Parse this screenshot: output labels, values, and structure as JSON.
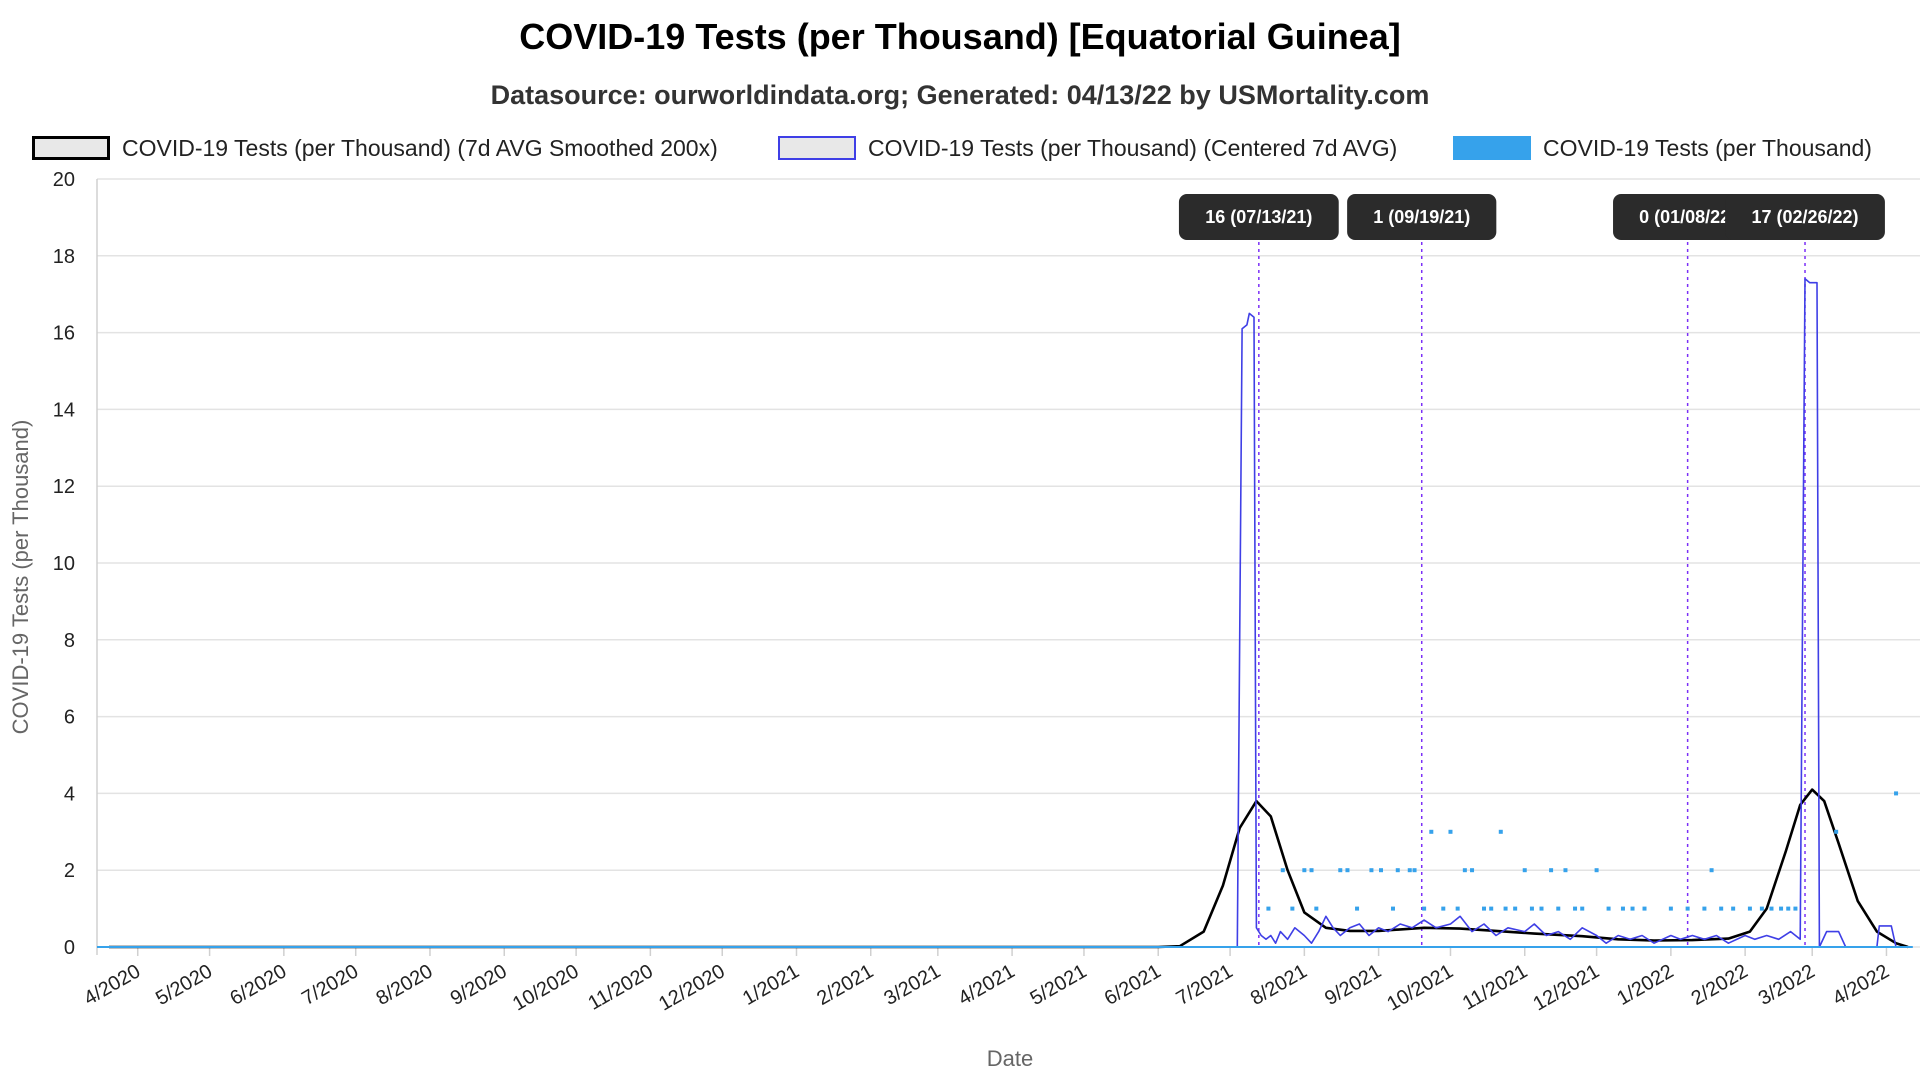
{
  "chart_data": {
    "type": "line",
    "title": "COVID-19 Tests (per Thousand) [Equatorial Guinea]",
    "subtitle": "Datasource: ourworldindata.org; Generated: 04/13/22 by USMortality.com",
    "xlabel": "Date",
    "ylabel": "COVID-19 Tests (per Thousand)",
    "ylim": [
      0,
      20
    ],
    "yticks": [
      0,
      2,
      4,
      6,
      8,
      10,
      12,
      14,
      16,
      18,
      20
    ],
    "xlim": [
      "2020-03-15",
      "2022-04-15"
    ],
    "xticks": [
      {
        "date": "2020-04-01",
        "label": "4/2020"
      },
      {
        "date": "2020-05-01",
        "label": "5/2020"
      },
      {
        "date": "2020-06-01",
        "label": "6/2020"
      },
      {
        "date": "2020-07-01",
        "label": "7/2020"
      },
      {
        "date": "2020-08-01",
        "label": "8/2020"
      },
      {
        "date": "2020-09-01",
        "label": "9/2020"
      },
      {
        "date": "2020-10-01",
        "label": "10/2020"
      },
      {
        "date": "2020-11-01",
        "label": "11/2020"
      },
      {
        "date": "2020-12-01",
        "label": "12/2020"
      },
      {
        "date": "2021-01-01",
        "label": "1/2021"
      },
      {
        "date": "2021-02-01",
        "label": "2/2021"
      },
      {
        "date": "2021-03-01",
        "label": "3/2021"
      },
      {
        "date": "2021-04-01",
        "label": "4/2021"
      },
      {
        "date": "2021-05-01",
        "label": "5/2021"
      },
      {
        "date": "2021-06-01",
        "label": "6/2021"
      },
      {
        "date": "2021-07-01",
        "label": "7/2021"
      },
      {
        "date": "2021-08-01",
        "label": "8/2021"
      },
      {
        "date": "2021-09-01",
        "label": "9/2021"
      },
      {
        "date": "2021-10-01",
        "label": "10/2021"
      },
      {
        "date": "2021-11-01",
        "label": "11/2021"
      },
      {
        "date": "2021-12-01",
        "label": "12/2021"
      },
      {
        "date": "2022-01-01",
        "label": "1/2022"
      },
      {
        "date": "2022-02-01",
        "label": "2/2022"
      },
      {
        "date": "2022-03-01",
        "label": "3/2022"
      },
      {
        "date": "2022-04-01",
        "label": "4/2022"
      }
    ],
    "grid": true,
    "legend_position": "top",
    "series": [
      {
        "name": "COVID-19 Tests (per Thousand) (7d AVG Smoothed 200x)",
        "style": "line",
        "color": "#000000",
        "points": [
          [
            "2020-03-20",
            0
          ],
          [
            "2021-06-01",
            0
          ],
          [
            "2021-06-10",
            0.02
          ],
          [
            "2021-06-20",
            0.4
          ],
          [
            "2021-06-28",
            1.6
          ],
          [
            "2021-07-05",
            3.1
          ],
          [
            "2021-07-12",
            3.8
          ],
          [
            "2021-07-18",
            3.4
          ],
          [
            "2021-07-25",
            2.0
          ],
          [
            "2021-08-01",
            0.9
          ],
          [
            "2021-08-10",
            0.5
          ],
          [
            "2021-08-20",
            0.42
          ],
          [
            "2021-09-01",
            0.42
          ],
          [
            "2021-09-20",
            0.5
          ],
          [
            "2021-10-05",
            0.48
          ],
          [
            "2021-10-20",
            0.42
          ],
          [
            "2021-11-05",
            0.35
          ],
          [
            "2021-11-25",
            0.28
          ],
          [
            "2021-12-10",
            0.2
          ],
          [
            "2021-12-25",
            0.17
          ],
          [
            "2022-01-10",
            0.18
          ],
          [
            "2022-01-25",
            0.22
          ],
          [
            "2022-02-03",
            0.4
          ],
          [
            "2022-02-10",
            1.0
          ],
          [
            "2022-02-18",
            2.5
          ],
          [
            "2022-02-24",
            3.7
          ],
          [
            "2022-03-01",
            4.1
          ],
          [
            "2022-03-06",
            3.8
          ],
          [
            "2022-03-12",
            2.7
          ],
          [
            "2022-03-20",
            1.2
          ],
          [
            "2022-03-28",
            0.4
          ],
          [
            "2022-04-05",
            0.1
          ],
          [
            "2022-04-10",
            0.0
          ]
        ]
      },
      {
        "name": "COVID-19 Tests (per Thousand) (Centered 7d AVG)",
        "style": "line",
        "color": "#3f3fe6",
        "points": [
          [
            "2020-03-20",
            0
          ],
          [
            "2021-07-04",
            0
          ],
          [
            "2021-07-06",
            16.1
          ],
          [
            "2021-07-08",
            16.2
          ],
          [
            "2021-07-09",
            16.5
          ],
          [
            "2021-07-11",
            16.4
          ],
          [
            "2021-07-12",
            0.5
          ],
          [
            "2021-07-14",
            0.3
          ],
          [
            "2021-07-16",
            0.2
          ],
          [
            "2021-07-18",
            0.3
          ],
          [
            "2021-07-20",
            0.1
          ],
          [
            "2021-07-22",
            0.4
          ],
          [
            "2021-07-25",
            0.2
          ],
          [
            "2021-07-28",
            0.5
          ],
          [
            "2021-08-01",
            0.3
          ],
          [
            "2021-08-04",
            0.1
          ],
          [
            "2021-08-07",
            0.4
          ],
          [
            "2021-08-10",
            0.8
          ],
          [
            "2021-08-13",
            0.5
          ],
          [
            "2021-08-16",
            0.3
          ],
          [
            "2021-08-20",
            0.5
          ],
          [
            "2021-08-24",
            0.6
          ],
          [
            "2021-08-28",
            0.3
          ],
          [
            "2021-09-01",
            0.5
          ],
          [
            "2021-09-05",
            0.4
          ],
          [
            "2021-09-10",
            0.6
          ],
          [
            "2021-09-15",
            0.5
          ],
          [
            "2021-09-20",
            0.7
          ],
          [
            "2021-09-25",
            0.5
          ],
          [
            "2021-10-01",
            0.6
          ],
          [
            "2021-10-05",
            0.8
          ],
          [
            "2021-10-10",
            0.4
          ],
          [
            "2021-10-15",
            0.6
          ],
          [
            "2021-10-20",
            0.3
          ],
          [
            "2021-10-25",
            0.5
          ],
          [
            "2021-11-01",
            0.4
          ],
          [
            "2021-11-05",
            0.6
          ],
          [
            "2021-11-10",
            0.3
          ],
          [
            "2021-11-15",
            0.4
          ],
          [
            "2021-11-20",
            0.2
          ],
          [
            "2021-11-25",
            0.5
          ],
          [
            "2021-12-01",
            0.3
          ],
          [
            "2021-12-05",
            0.1
          ],
          [
            "2021-12-10",
            0.3
          ],
          [
            "2021-12-15",
            0.2
          ],
          [
            "2021-12-20",
            0.3
          ],
          [
            "2021-12-25",
            0.1
          ],
          [
            "2022-01-01",
            0.3
          ],
          [
            "2022-01-05",
            0.2
          ],
          [
            "2022-01-10",
            0.3
          ],
          [
            "2022-01-15",
            0.2
          ],
          [
            "2022-01-20",
            0.3
          ],
          [
            "2022-01-25",
            0.1
          ],
          [
            "2022-02-01",
            0.3
          ],
          [
            "2022-02-05",
            0.2
          ],
          [
            "2022-02-10",
            0.3
          ],
          [
            "2022-02-15",
            0.2
          ],
          [
            "2022-02-20",
            0.4
          ],
          [
            "2022-02-24",
            0.2
          ],
          [
            "2022-02-26",
            17.4
          ],
          [
            "2022-02-28",
            17.3
          ],
          [
            "2022-03-03",
            17.3
          ],
          [
            "2022-03-04",
            0.0
          ],
          [
            "2022-03-07",
            0.4
          ],
          [
            "2022-03-12",
            0.4
          ],
          [
            "2022-03-15",
            0.0
          ],
          [
            "2022-03-28",
            0.0
          ],
          [
            "2022-03-29",
            0.55
          ],
          [
            "2022-04-03",
            0.55
          ],
          [
            "2022-04-05",
            0.0
          ],
          [
            "2022-04-10",
            0.0
          ]
        ]
      },
      {
        "name": "COVID-19 Tests (per Thousand)",
        "style": "points",
        "color": "#36a2eb",
        "points": [
          [
            "2021-07-17",
            1
          ],
          [
            "2021-07-23",
            2
          ],
          [
            "2021-07-27",
            1
          ],
          [
            "2021-08-01",
            2
          ],
          [
            "2021-08-04",
            2
          ],
          [
            "2021-08-06",
            1
          ],
          [
            "2021-08-16",
            2
          ],
          [
            "2021-08-19",
            2
          ],
          [
            "2021-08-23",
            1
          ],
          [
            "2021-08-29",
            2
          ],
          [
            "2021-09-02",
            2
          ],
          [
            "2021-09-07",
            1
          ],
          [
            "2021-09-09",
            2
          ],
          [
            "2021-09-14",
            2
          ],
          [
            "2021-09-16",
            2
          ],
          [
            "2021-09-20",
            1
          ],
          [
            "2021-09-23",
            3
          ],
          [
            "2021-09-28",
            1
          ],
          [
            "2021-10-01",
            3
          ],
          [
            "2021-10-04",
            1
          ],
          [
            "2021-10-07",
            2
          ],
          [
            "2021-10-10",
            2
          ],
          [
            "2021-10-15",
            1
          ],
          [
            "2021-10-18",
            1
          ],
          [
            "2021-10-22",
            3
          ],
          [
            "2021-10-24",
            1
          ],
          [
            "2021-10-28",
            1
          ],
          [
            "2021-11-01",
            2
          ],
          [
            "2021-11-04",
            1
          ],
          [
            "2021-11-08",
            1
          ],
          [
            "2021-11-12",
            2
          ],
          [
            "2021-11-15",
            1
          ],
          [
            "2021-11-18",
            2
          ],
          [
            "2021-11-22",
            1
          ],
          [
            "2021-11-25",
            1
          ],
          [
            "2021-12-01",
            2
          ],
          [
            "2021-12-06",
            1
          ],
          [
            "2021-12-12",
            1
          ],
          [
            "2021-12-16",
            1
          ],
          [
            "2021-12-21",
            1
          ],
          [
            "2022-01-01",
            1
          ],
          [
            "2022-01-08",
            1
          ],
          [
            "2022-01-15",
            1
          ],
          [
            "2022-01-18",
            2
          ],
          [
            "2022-01-22",
            1
          ],
          [
            "2022-01-27",
            1
          ],
          [
            "2022-02-03",
            1
          ],
          [
            "2022-02-08",
            1
          ],
          [
            "2022-02-12",
            1
          ],
          [
            "2022-02-16",
            1
          ],
          [
            "2022-02-19",
            1
          ],
          [
            "2022-02-22",
            1
          ],
          [
            "2022-03-11",
            3
          ],
          [
            "2022-04-05",
            4
          ]
        ]
      }
    ],
    "markers": [
      {
        "date": "2021-07-13",
        "label": "16 (07/13/21)",
        "color": "#7b2ff7"
      },
      {
        "date": "2021-09-19",
        "label": "1 (09/19/21)",
        "color": "#7b2ff7"
      },
      {
        "date": "2022-01-08",
        "label": "0 (01/08/22)",
        "color": "#7b2ff7"
      },
      {
        "date": "2022-02-26",
        "label": "17 (02/26/22)",
        "color": "#7b2ff7"
      }
    ]
  }
}
